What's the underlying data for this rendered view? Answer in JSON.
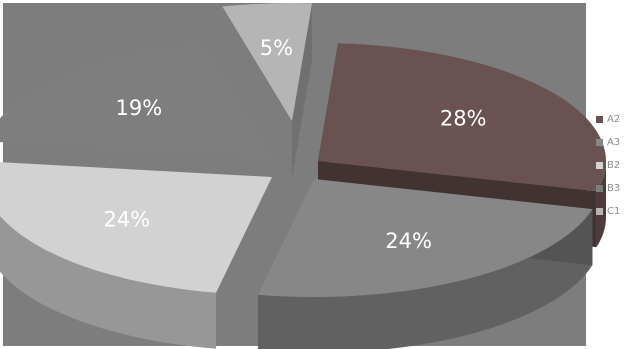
{
  "chart_data": {
    "type": "pie",
    "style": "3d-exploded",
    "categories": [
      "A2",
      "A3",
      "B2",
      "B3",
      "C1"
    ],
    "values": [
      28,
      24,
      24,
      19,
      5
    ],
    "labels": [
      "28%",
      "24%",
      "24%",
      "19%",
      "5%"
    ],
    "legend_position": "right"
  },
  "colors": {
    "background": "#7d7d7d",
    "A2": "#6b5252",
    "A3": "#878787",
    "B2": "#d2d2d2",
    "B3": "#7e7e7e",
    "C1": "#b5b5b5"
  },
  "legend": {
    "items": [
      {
        "label": "A2",
        "color": "#6b5252"
      },
      {
        "label": "A3",
        "color": "#878787"
      },
      {
        "label": "B2",
        "color": "#d2d2d2"
      },
      {
        "label": "B3",
        "color": "#7e7e7e"
      },
      {
        "label": "C1",
        "color": "#b5b5b5"
      }
    ]
  }
}
